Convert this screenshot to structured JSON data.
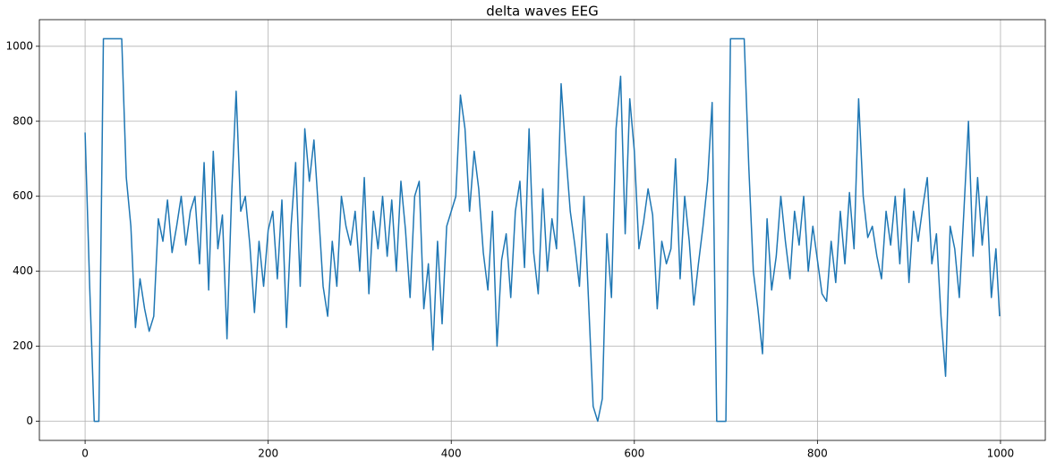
{
  "chart_data": {
    "type": "line",
    "title": "delta waves EEG",
    "x": [
      0,
      5,
      10,
      15,
      20,
      25,
      30,
      35,
      40,
      45,
      50,
      55,
      60,
      65,
      70,
      75,
      80,
      85,
      90,
      95,
      100,
      105,
      110,
      115,
      120,
      125,
      130,
      135,
      140,
      145,
      150,
      155,
      160,
      165,
      170,
      175,
      180,
      185,
      190,
      195,
      200,
      205,
      210,
      215,
      220,
      225,
      230,
      235,
      240,
      245,
      250,
      255,
      260,
      265,
      270,
      275,
      280,
      285,
      290,
      295,
      300,
      305,
      310,
      315,
      320,
      325,
      330,
      335,
      340,
      345,
      350,
      355,
      360,
      365,
      370,
      375,
      380,
      385,
      390,
      395,
      400,
      405,
      410,
      415,
      420,
      425,
      430,
      435,
      440,
      445,
      450,
      455,
      460,
      465,
      470,
      475,
      480,
      485,
      490,
      495,
      500,
      505,
      510,
      515,
      520,
      525,
      530,
      535,
      540,
      545,
      550,
      555,
      560,
      565,
      570,
      575,
      580,
      585,
      590,
      595,
      600,
      605,
      610,
      615,
      620,
      625,
      630,
      635,
      640,
      645,
      650,
      655,
      660,
      665,
      670,
      675,
      680,
      685,
      690,
      695,
      700,
      705,
      710,
      715,
      720,
      725,
      730,
      735,
      740,
      745,
      750,
      755,
      760,
      765,
      770,
      775,
      780,
      785,
      790,
      795,
      800,
      805,
      810,
      815,
      820,
      825,
      830,
      835,
      840,
      845,
      850,
      855,
      860,
      865,
      870,
      875,
      880,
      885,
      890,
      895,
      900,
      905,
      910,
      915,
      920,
      925,
      930,
      935,
      940,
      945,
      950,
      955,
      960,
      965,
      970,
      975,
      980,
      985,
      990,
      995,
      999
    ],
    "series": [
      {
        "name": "delta",
        "color": "#1f77b4",
        "values": [
          770,
          360,
          0,
          0,
          1020,
          1020,
          1020,
          1020,
          1020,
          650,
          520,
          250,
          380,
          300,
          240,
          280,
          540,
          480,
          590,
          450,
          520,
          600,
          470,
          560,
          600,
          420,
          690,
          350,
          720,
          460,
          550,
          220,
          600,
          880,
          560,
          600,
          470,
          290,
          480,
          360,
          510,
          560,
          380,
          590,
          250,
          520,
          690,
          360,
          780,
          640,
          750,
          560,
          360,
          280,
          480,
          360,
          600,
          520,
          470,
          560,
          400,
          650,
          340,
          560,
          460,
          600,
          440,
          590,
          400,
          640,
          510,
          330,
          600,
          640,
          300,
          420,
          190,
          480,
          260,
          520,
          560,
          600,
          870,
          780,
          560,
          720,
          620,
          450,
          350,
          560,
          200,
          430,
          500,
          330,
          560,
          640,
          410,
          780,
          450,
          340,
          620,
          400,
          540,
          460,
          900,
          720,
          560,
          470,
          360,
          600,
          320,
          40,
          0,
          60,
          500,
          330,
          780,
          920,
          500,
          860,
          720,
          460,
          530,
          620,
          550,
          300,
          480,
          420,
          460,
          700,
          380,
          600,
          480,
          310,
          420,
          520,
          640,
          850,
          0,
          0,
          0,
          1020,
          1020,
          1020,
          1020,
          680,
          400,
          300,
          180,
          540,
          350,
          440,
          600,
          480,
          380,
          560,
          470,
          600,
          400,
          520,
          430,
          340,
          320,
          480,
          370,
          560,
          420,
          610,
          460,
          860,
          600,
          490,
          520,
          440,
          380,
          560,
          470,
          600,
          420,
          620,
          370,
          560,
          480,
          570,
          650,
          420,
          500,
          280,
          120,
          520,
          460,
          330,
          560,
          800,
          440,
          650,
          470,
          600,
          330,
          460,
          280
        ]
      }
    ],
    "xlim": [
      -49.95,
      1048.95
    ],
    "ylim": [
      -51,
      1071
    ],
    "xticks": [
      0,
      200,
      400,
      600,
      800,
      1000
    ],
    "yticks": [
      0,
      200,
      400,
      600,
      800,
      1000
    ],
    "grid": true
  }
}
